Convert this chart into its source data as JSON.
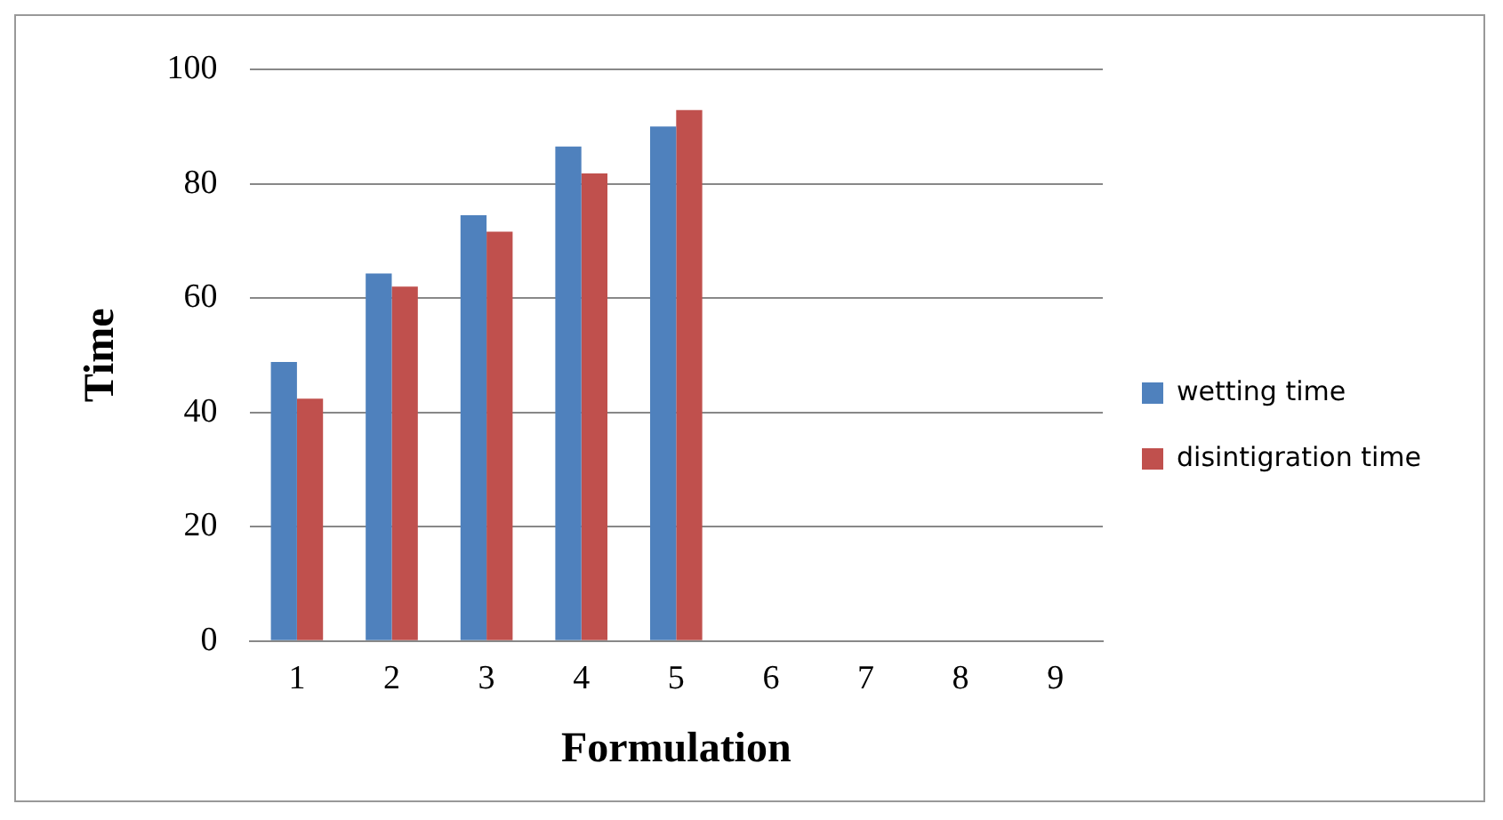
{
  "chart_data": {
    "type": "bar",
    "xlabel": "Formulation",
    "ylabel": "Time",
    "categories": [
      "1",
      "2",
      "3",
      "4",
      "5",
      "6",
      "7",
      "8",
      "9"
    ],
    "series": [
      {
        "name": "wetting time",
        "color": "#4f81bd",
        "values": [
          48.8,
          64.3,
          74.5,
          86.5,
          90.0,
          null,
          null,
          null,
          null
        ]
      },
      {
        "name": "disintigration time",
        "color": "#c0504d",
        "values": [
          42.4,
          62.0,
          71.6,
          81.8,
          92.9,
          null,
          null,
          null,
          null
        ]
      }
    ],
    "ylim": [
      0,
      100
    ],
    "yticks": [
      0,
      20,
      40,
      60,
      80,
      100
    ],
    "grid": "y",
    "legend": "right"
  }
}
